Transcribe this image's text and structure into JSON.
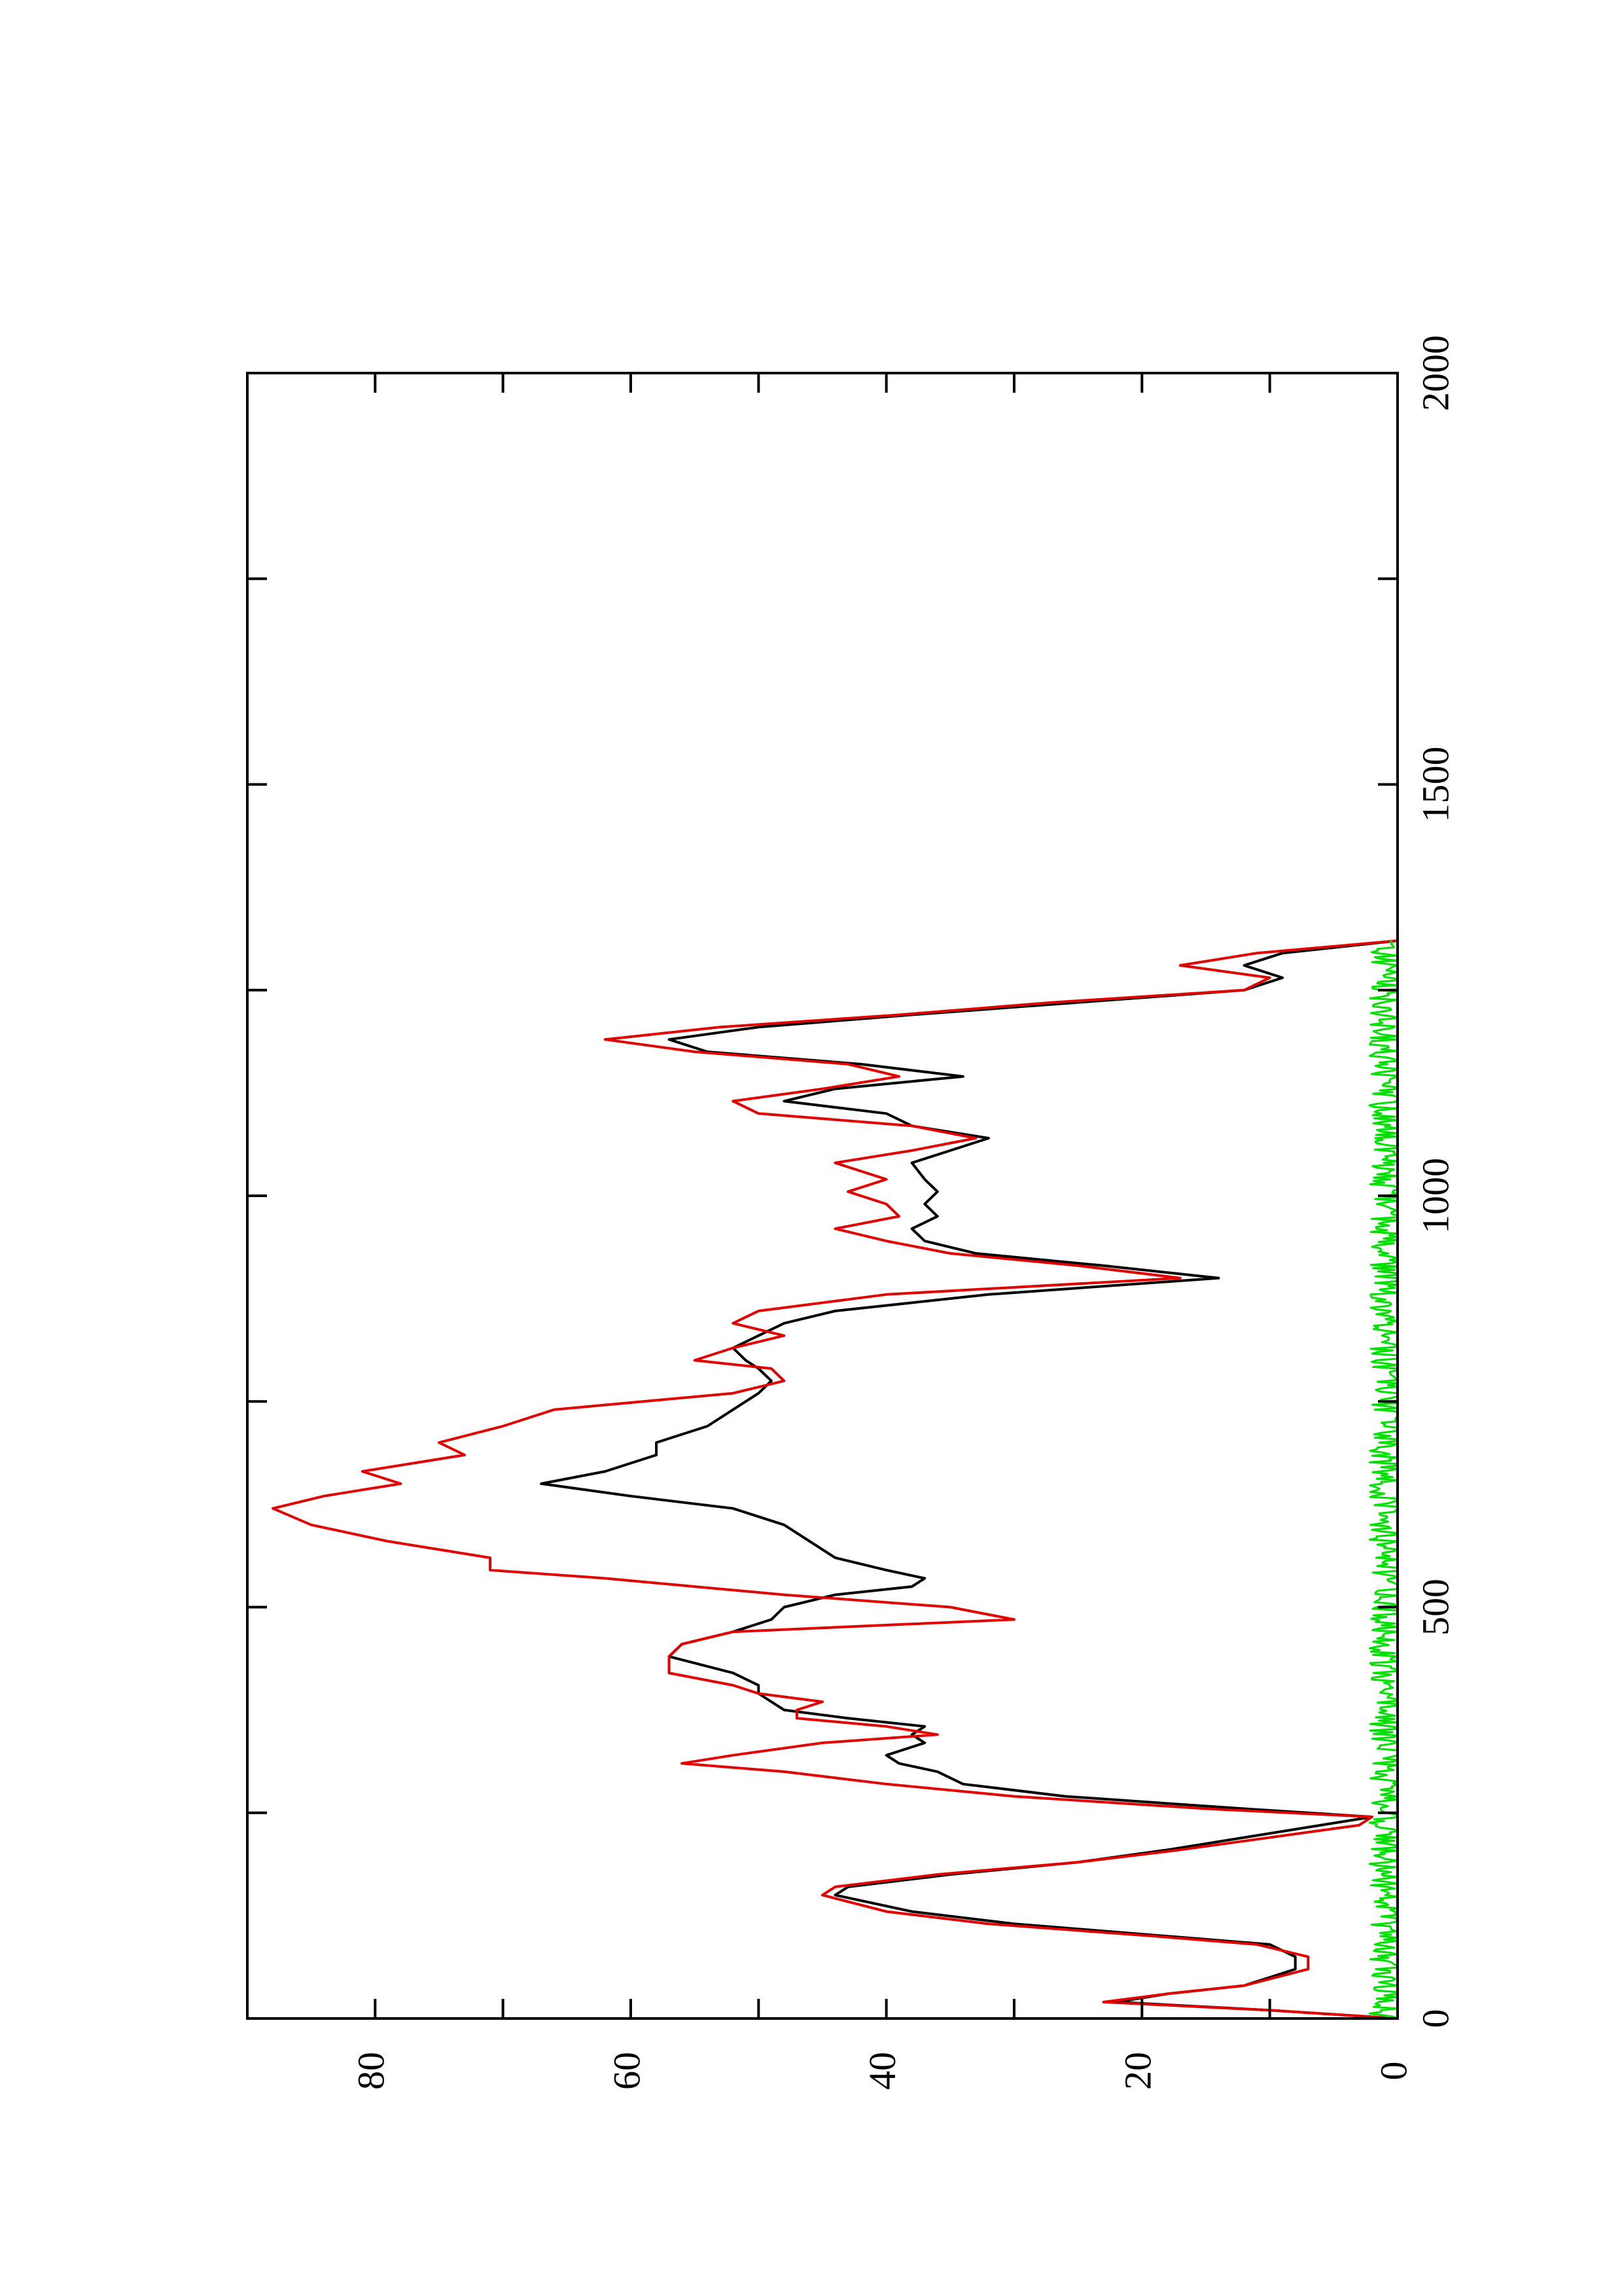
{
  "chart_data": {
    "type": "line",
    "orientation": "rotated-90-ccw",
    "title": "",
    "xlabel": "",
    "ylabel": "",
    "xlim": [
      0,
      2000
    ],
    "ylim": [
      0,
      90
    ],
    "x_ticks": [
      0,
      500,
      1000,
      1500,
      2000
    ],
    "y_ticks": [
      0,
      20,
      40,
      60,
      80
    ],
    "grid": false,
    "legend": "none",
    "colors": {
      "series_a": "#000000",
      "series_b": "#e00000",
      "series_c": "#00e000",
      "axes": "#000000"
    },
    "series": [
      {
        "color": "#000000",
        "x": [
          0,
          10,
          20,
          30,
          40,
          60,
          75,
          90,
          100,
          115,
          130,
          150,
          160,
          175,
          190,
          205,
          220,
          235,
          245,
          255,
          270,
          285,
          300,
          310,
          320,
          335,
          345,
          355,
          365,
          375,
          385,
          395,
          405,
          420,
          440,
          455,
          470,
          485,
          500,
          515,
          525,
          535,
          545,
          560,
          580,
          600,
          620,
          635,
          650,
          665,
          685,
          700,
          720,
          740,
          760,
          775,
          790,
          800,
          815,
          830,
          845,
          860,
          880,
          900,
          915,
          930,
          945,
          960,
          975,
          990,
          1005,
          1020,
          1040,
          1055,
          1070,
          1085,
          1100,
          1115,
          1130,
          1145,
          1160,
          1175,
          1190,
          1205,
          1220,
          1235,
          1250,
          1265,
          1280,
          1295,
          1310
        ],
        "y": [
          0,
          10,
          22,
          18,
          12,
          8,
          8,
          10,
          18,
          30,
          38,
          44,
          43,
          35,
          25,
          18,
          12,
          6,
          2,
          12,
          26,
          34,
          36,
          39,
          40,
          37,
          38,
          37,
          43,
          48,
          49,
          50,
          50,
          52,
          57,
          56,
          52,
          49,
          48,
          44,
          38,
          37,
          40,
          44,
          46,
          48,
          52,
          60,
          67,
          62,
          58,
          58,
          54,
          52,
          50,
          49,
          50,
          51,
          52,
          50,
          48,
          44,
          32,
          14,
          23,
          33,
          37,
          38,
          36,
          37,
          36,
          37,
          38,
          35,
          32,
          38,
          40,
          48,
          44,
          34,
          42,
          54,
          57,
          50,
          38,
          25,
          12,
          9,
          12,
          9,
          0
        ]
      },
      {
        "color": "#e00000",
        "x": [
          0,
          10,
          20,
          30,
          40,
          60,
          75,
          90,
          100,
          115,
          130,
          150,
          160,
          175,
          190,
          205,
          220,
          235,
          245,
          255,
          270,
          285,
          300,
          310,
          320,
          335,
          345,
          355,
          365,
          375,
          385,
          395,
          405,
          420,
          440,
          455,
          470,
          485,
          500,
          515,
          525,
          535,
          545,
          560,
          580,
          600,
          620,
          635,
          650,
          665,
          685,
          700,
          720,
          740,
          760,
          775,
          790,
          800,
          815,
          830,
          845,
          860,
          880,
          900,
          915,
          930,
          945,
          960,
          975,
          990,
          1005,
          1020,
          1040,
          1055,
          1070,
          1085,
          1100,
          1115,
          1130,
          1145,
          1160,
          1175,
          1190,
          1205,
          1220,
          1235,
          1250,
          1265,
          1280,
          1295,
          1310
        ],
        "y": [
          0,
          10,
          23,
          18,
          12,
          7,
          7,
          11,
          19,
          32,
          40,
          45,
          44,
          36,
          25,
          17,
          10,
          3,
          2,
          15,
          30,
          40,
          48,
          56,
          52,
          45,
          36,
          40,
          47,
          47,
          45,
          50,
          52,
          57,
          57,
          56,
          52,
          30,
          35,
          48,
          55,
          62,
          71,
          71,
          79,
          85,
          88,
          84,
          78,
          81,
          73,
          75,
          70,
          66,
          52,
          48,
          49,
          55,
          52,
          48,
          52,
          50,
          40,
          17,
          25,
          35,
          40,
          44,
          39,
          40,
          43,
          40,
          44,
          38,
          33,
          38,
          50,
          52,
          45,
          39,
          43,
          55,
          62,
          53,
          39,
          27,
          12,
          10,
          17,
          11,
          0
        ]
      },
      {
        "color": "#00e000",
        "noise_amplitude": 1.4,
        "x_range": [
          0,
          1310
        ],
        "y_level": 0.8
      }
    ]
  }
}
